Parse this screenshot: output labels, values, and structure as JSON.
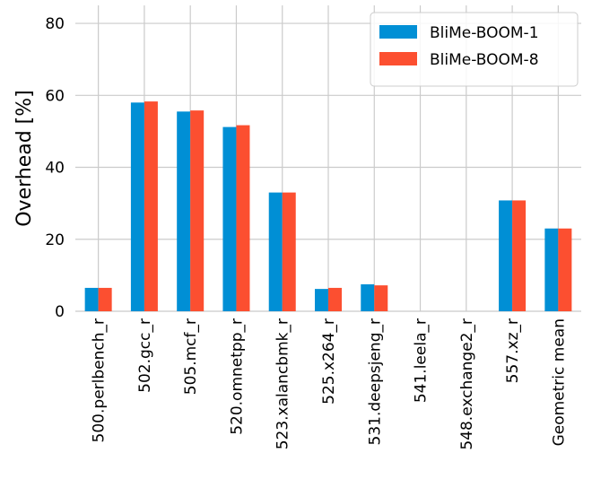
{
  "chart_data": {
    "type": "bar",
    "ylabel": "Overhead [%]",
    "ylim": [
      0,
      85
    ],
    "yticks": [
      0,
      20,
      40,
      60,
      80
    ],
    "grid": true,
    "legend_position": "top-right",
    "categories": [
      "500.perlbench_r",
      "502.gcc_r",
      "505.mcf_r",
      "520.omnetpp_r",
      "523.xalancbmk_r",
      "525.x264_r",
      "531.deepsjeng_r",
      "541.leela_r",
      "548.exchange2_r",
      "557.xz_r",
      "Geometric mean"
    ],
    "series": [
      {
        "name": "BliMe-BOOM-1",
        "color": "#008fd5",
        "values": [
          6.5,
          58.0,
          55.5,
          51.2,
          33.0,
          6.2,
          7.5,
          0.0,
          0.0,
          30.8,
          23.0
        ]
      },
      {
        "name": "BliMe-BOOM-8",
        "color": "#fc4f30",
        "values": [
          6.5,
          58.3,
          55.8,
          51.7,
          33.0,
          6.5,
          7.2,
          0.0,
          0.0,
          30.8,
          23.0
        ]
      }
    ]
  }
}
